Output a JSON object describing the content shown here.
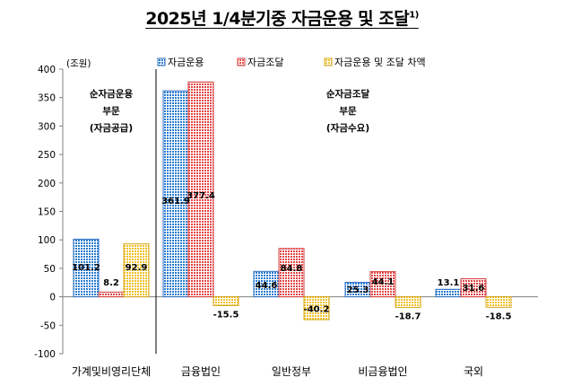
{
  "title": "2025년 1/4분기중 자금운용 및 조달",
  "title_footnote": "1)",
  "chart_data": {
    "type": "bar",
    "title": "2025년 1/4분기중 자금운용 및 조달",
    "ylabel": "(조원)",
    "ylim": [
      -100,
      400
    ],
    "yticks": [
      -100,
      -50,
      0,
      50,
      100,
      150,
      200,
      250,
      300,
      350,
      400
    ],
    "grid": false,
    "legend_position": "top",
    "categories": [
      "가계및비영리단체",
      "금융법인",
      "일반정부",
      "비금융법인",
      "국외"
    ],
    "series": [
      {
        "name": "자금운용",
        "color": "#1f6fc5",
        "values": [
          101.2,
          361.9,
          44.6,
          25.3,
          13.1
        ]
      },
      {
        "name": "자금조달",
        "color": "#e04040",
        "values": [
          8.2,
          377.4,
          84.8,
          44.1,
          31.6
        ]
      },
      {
        "name": "자금운용 및 조달 차액",
        "color": "#e8c020",
        "values": [
          92.9,
          -15.5,
          -40.2,
          -18.7,
          -18.5
        ]
      }
    ],
    "annotations": {
      "left": [
        "순자금운용",
        "부문",
        "(자금공급)"
      ],
      "right": [
        "순자금조달",
        "부문",
        "(자금수요)"
      ]
    }
  }
}
